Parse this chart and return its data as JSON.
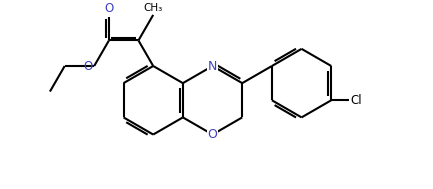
{
  "bg_color": "#ffffff",
  "line_color": "#000000",
  "n_color": "#4040c0",
  "o_color": "#4040c0",
  "bond_lw": 1.5,
  "figsize": [
    4.33,
    1.89
  ],
  "dpi": 100,
  "xlim": [
    0,
    8.66
  ],
  "ylim": [
    0,
    3.78
  ]
}
